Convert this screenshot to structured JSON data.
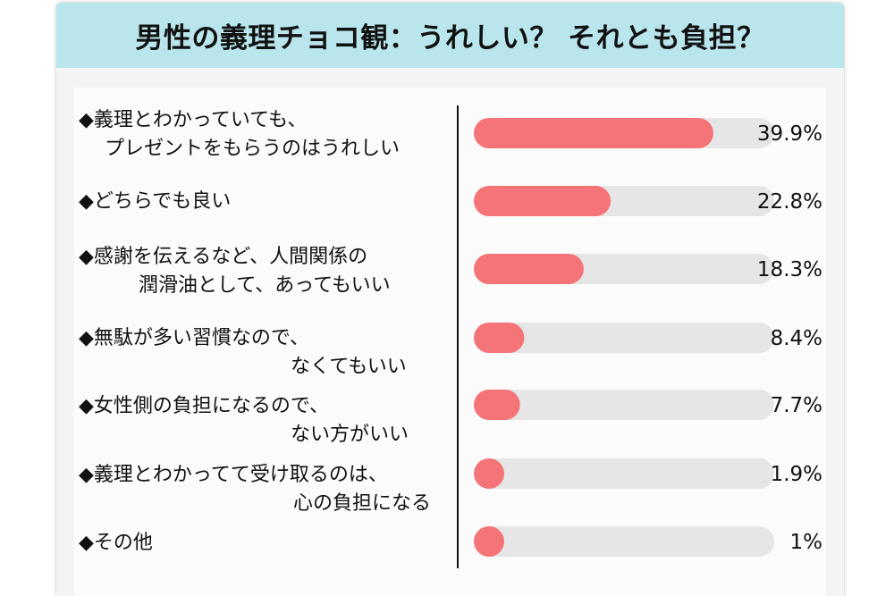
{
  "title": "男性の義理チョコ観：うれしい？ それとも負担？",
  "colors": {
    "bar": "#f47477",
    "track": "#e6e6e6",
    "title_band": "#b8e6ec",
    "axis": "#111111"
  },
  "chart_data": {
    "type": "bar",
    "orientation": "horizontal",
    "xlim": [
      0,
      50
    ],
    "categories": [
      [
        "◆義理とわかっていても、",
        "プレゼントをもらうのはうれしい"
      ],
      [
        "◆どちらでも良い"
      ],
      [
        "◆感謝を伝えるなど、人間関係の",
        "潤滑油として、あってもいい"
      ],
      [
        "◆無駄が多い習慣なので、",
        "なくてもいい"
      ],
      [
        "◆女性側の負担になるので、",
        "ない方がいい"
      ],
      [
        "◆義理とわかってて受け取るのは、",
        "心の負担になる"
      ],
      [
        "◆その他"
      ]
    ],
    "values": [
      39.9,
      22.8,
      18.3,
      8.4,
      7.7,
      1.9,
      1
    ],
    "value_labels": [
      "39.9%",
      "22.8%",
      "18.3%",
      "8.4%",
      "7.7%",
      "1.9%",
      "1%"
    ],
    "grid": false
  }
}
